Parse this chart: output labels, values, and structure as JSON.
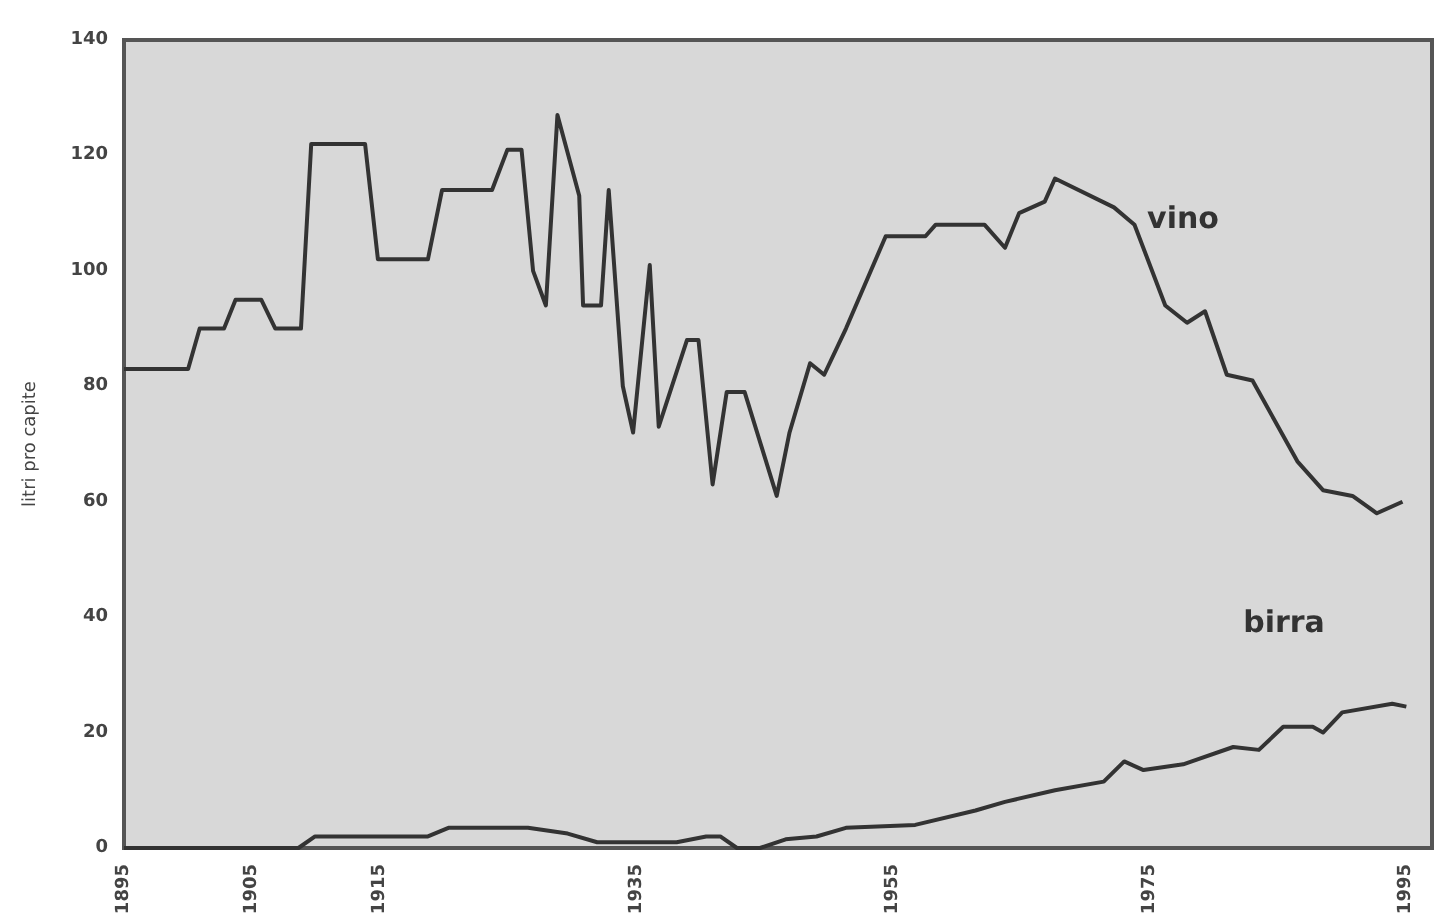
{
  "chart_data": {
    "type": "line",
    "ylabel": "litri pro capite",
    "xlim": [
      1895,
      1997
    ],
    "xticks": [
      1895,
      1905,
      1915,
      1935,
      1955,
      1975,
      1995
    ],
    "ylim": [
      0,
      140
    ],
    "yticks": [
      0,
      20,
      40,
      60,
      80,
      100,
      120,
      140
    ],
    "grid": false,
    "legend": false,
    "marker": "none",
    "line_style": "solid",
    "series": [
      {
        "name": "vino",
        "color": "#333333",
        "x": [
          1895,
          1900,
          1900.9,
          1902.8,
          1903.7,
          1905.7,
          1906.8,
          1908.8,
          1909.6,
          1913.8,
          1914.8,
          1918.7,
          1919.8,
          1923.7,
          1924.9,
          1926,
          1926.9,
          1927.9,
          1928.8,
          1930.5,
          1930.8,
          1932.2,
          1932.8,
          1933.9,
          1934.7,
          1936,
          1936.7,
          1938.9,
          1939.8,
          1940.9,
          1942,
          1943.4,
          1945.9,
          1946.9,
          1948.5,
          1949.6,
          1951.3,
          1954.4,
          1957.5,
          1958.3,
          1962.1,
          1963.7,
          1964.8,
          1966.8,
          1967.6,
          1972.2,
          1973.8,
          1976.2,
          1977.9,
          1979.3,
          1981,
          1983,
          1986.5,
          1988.5,
          1990.8,
          1992.7,
          1994.7
        ],
        "values": [
          83,
          83,
          90,
          90,
          95,
          95,
          90,
          90,
          122,
          122,
          102,
          102,
          114,
          114,
          121,
          121,
          100,
          94,
          127,
          113,
          94,
          94,
          114,
          80,
          72,
          101,
          73,
          88,
          88,
          63,
          79,
          79,
          61,
          72,
          84,
          82,
          90,
          106,
          106,
          108,
          108,
          104,
          110,
          112,
          116,
          111,
          108,
          94,
          91,
          93,
          82,
          81,
          67,
          62,
          61,
          58,
          60
        ]
      },
      {
        "name": "birra",
        "color": "#333333",
        "x": [
          1895,
          1908.6,
          1909.9,
          1914.1,
          1916.4,
          1918.7,
          1920.3,
          1926.5,
          1929.6,
          1931.9,
          1938.1,
          1940.4,
          1941.5,
          1942.8,
          1944.6,
          1946.6,
          1949,
          1951.3,
          1956.7,
          1961.4,
          1963.7,
          1967.6,
          1971.4,
          1973,
          1974.5,
          1977.6,
          1981.5,
          1983.5,
          1985.4,
          1987.7,
          1988.5,
          1990,
          1993.9,
          1995
        ],
        "values": [
          0,
          0,
          2,
          2,
          2,
          2,
          3.5,
          3.5,
          2.5,
          1,
          1,
          2,
          2,
          0,
          0,
          1.5,
          2,
          3.5,
          4,
          6.5,
          8,
          10,
          11.5,
          15,
          13.5,
          14.5,
          17.5,
          17,
          21,
          21,
          20,
          23.5,
          25,
          24.5
        ]
      }
    ]
  }
}
